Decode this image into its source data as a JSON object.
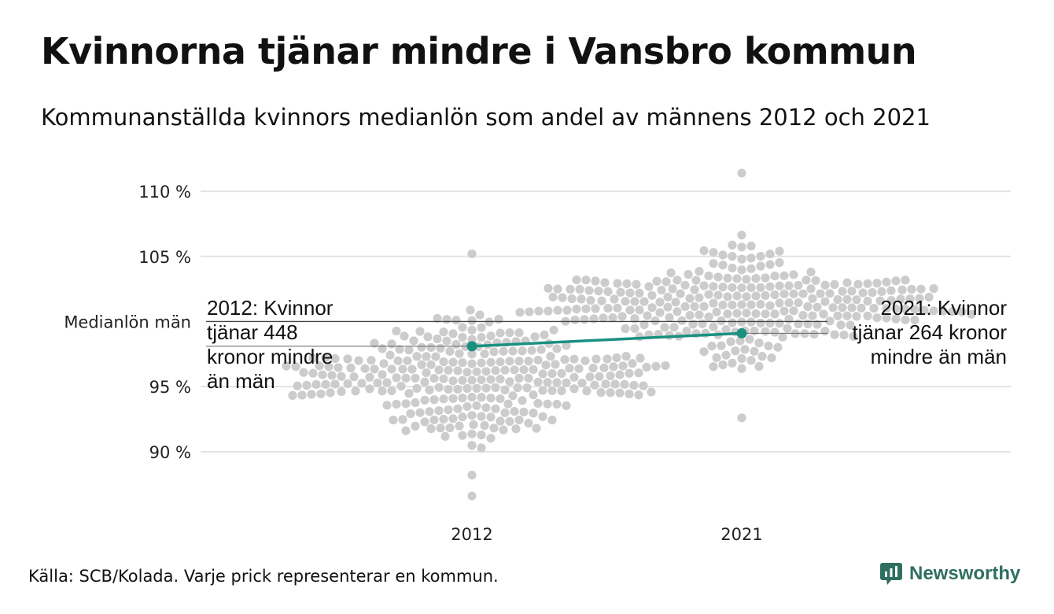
{
  "title": "Kvinnorna tjänar mindre i Vansbro kommun",
  "subtitle": "Kommunanställda kvinnors medianlön som andel av männens 2012 och 2021",
  "source": "Källa: SCB/Kolada. Varje prick representerar en kommun.",
  "brand": {
    "name": "Newsworthy",
    "icon": "bar-chart-speech-icon",
    "color": "#2f6f5f"
  },
  "chart_data": {
    "type": "scatter",
    "categories": [
      "2012",
      "2021"
    ],
    "y_ticks": [
      {
        "value": 90,
        "label": "90 %"
      },
      {
        "value": 95,
        "label": "95 %"
      },
      {
        "value": 105,
        "label": "105 %"
      },
      {
        "value": 110,
        "label": "110 %"
      }
    ],
    "reference_line": {
      "value": 100,
      "label": "Medianlön män"
    },
    "ylim": [
      86,
      112
    ],
    "grid": true,
    "highlight": {
      "name": "Vansbro",
      "color": "#1a9080",
      "values": [
        98.1,
        99.1
      ]
    },
    "annotations": [
      {
        "category": "2012",
        "text": "2012: Kvinnor\ntjänar 448\nkronor mindre\nän män"
      },
      {
        "category": "2021",
        "text": "2021: Kvinnor\ntjänar 264 kronor\nmindre än män"
      }
    ],
    "swarm": [
      {
        "category": "2012",
        "median": 95.5,
        "spread": 2.6,
        "count": 290,
        "min": 86.6,
        "max": 105.2
      },
      {
        "category": "2021",
        "median": 101.3,
        "spread": 2.4,
        "count": 290,
        "min": 92.6,
        "max": 111.4
      }
    ],
    "dot_color": "#cccccc"
  }
}
